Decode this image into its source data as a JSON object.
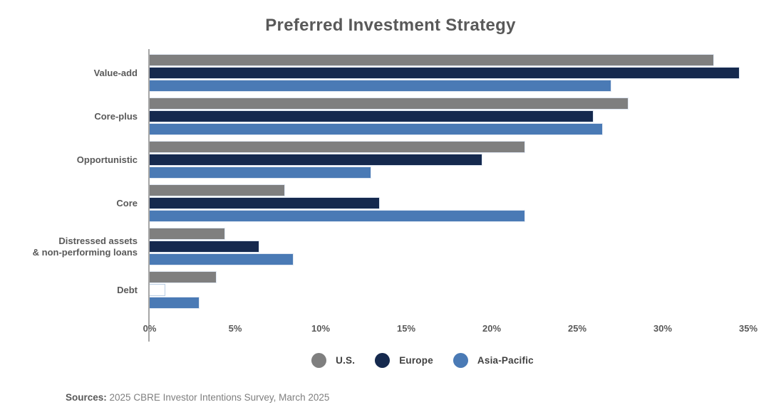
{
  "title": "Preferred Investment Strategy",
  "source": {
    "label": "Sources:",
    "text": " 2025 CBRE Investor Intentions Survey, March 2025"
  },
  "legend": [
    {
      "label": "U.S.",
      "color": "#7f7f7f"
    },
    {
      "label": "Europe",
      "color": "#15294e"
    },
    {
      "label": "Asia-Pacific",
      "color": "#4a7ab5"
    }
  ],
  "colors": {
    "axis": "#a6a6a6",
    "bar_border": "#dfe7f2",
    "text": "#595959"
  },
  "chart_data": {
    "type": "bar",
    "orientation": "horizontal",
    "title": "Preferred Investment Strategy",
    "categories": [
      "Value-add",
      "Core-plus",
      "Opportunistic",
      "Core",
      "Distressed assets\n& non-performing loans",
      "Debt"
    ],
    "series": [
      {
        "name": "U.S.",
        "color": "#7f7f7f",
        "values": [
          33,
          28,
          22,
          8,
          4.5,
          4
        ]
      },
      {
        "name": "Europe",
        "color": "#15294e",
        "values": [
          34.5,
          26,
          19.5,
          13.5,
          6.5,
          1
        ]
      },
      {
        "name": "Asia-Pacific",
        "color": "#4a7ab5",
        "values": [
          27,
          26.5,
          13,
          22,
          8.5,
          3
        ]
      }
    ],
    "outline_only": [
      {
        "category": "Debt",
        "series": "Europe"
      }
    ],
    "xlim": [
      0,
      35
    ],
    "x_ticks": [
      "0%",
      "5%",
      "10%",
      "15%",
      "20%",
      "25%",
      "30%",
      "35%"
    ],
    "xlabel": "",
    "ylabel": "",
    "grid": false,
    "legend_position": "bottom"
  }
}
